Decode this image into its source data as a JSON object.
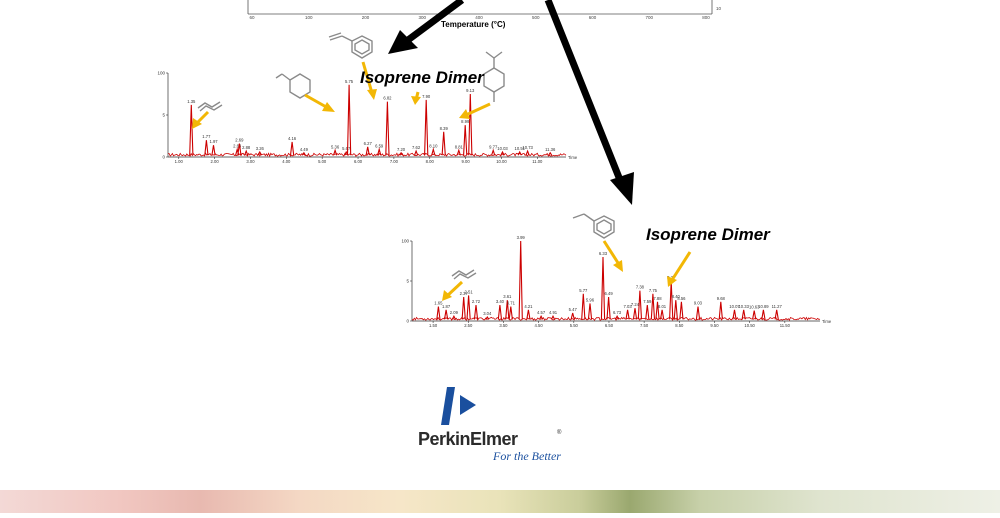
{
  "top_axis": {
    "xlabel": "Temperature (°C)",
    "ticks": [
      "60",
      "100",
      "200",
      "300",
      "400",
      "500",
      "600",
      "700",
      "800"
    ],
    "right_tick": "10"
  },
  "annotations": {
    "isoprene_dimer_1": "Isoprene Dimer",
    "isoprene_dimer_2": "Isoprene Dimer"
  },
  "colors": {
    "trace": "#cc0000",
    "callout_arrow": "#f2b705",
    "flow_arrow": "#000000",
    "brand_blue": "#1a4f9e"
  },
  "logo": {
    "name": "PerkinElmer",
    "registered": "®",
    "tagline": "For the Better"
  },
  "chart_data": [
    {
      "type": "line",
      "ylim": [
        0,
        100
      ],
      "y_ticks": [
        "100",
        "5",
        "0"
      ],
      "x_ticks": [
        "1.00",
        "2.00",
        "3.00",
        "4.00",
        "5.00",
        "6.00",
        "7.00",
        "8.00",
        "9.00",
        "10.00",
        "11.00"
      ],
      "xlim": [
        0.7,
        11.8
      ],
      "x_unit": "Time",
      "peaks": [
        {
          "x": 1.35,
          "y": 62,
          "label": "1.35"
        },
        {
          "x": 1.77,
          "y": 20,
          "label": "1.77"
        },
        {
          "x": 1.97,
          "y": 14,
          "label": "1.97"
        },
        {
          "x": 2.63,
          "y": 9,
          "label": "2.63"
        },
        {
          "x": 2.69,
          "y": 16,
          "label": "2.69"
        },
        {
          "x": 2.88,
          "y": 7,
          "label": "2.88"
        },
        {
          "x": 3.26,
          "y": 6,
          "label": "3.26"
        },
        {
          "x": 4.16,
          "y": 18,
          "label": "4.16"
        },
        {
          "x": 4.49,
          "y": 5,
          "label": "4.49"
        },
        {
          "x": 5.36,
          "y": 8,
          "label": "5.36"
        },
        {
          "x": 5.67,
          "y": 6,
          "label": "5.67"
        },
        {
          "x": 5.75,
          "y": 86,
          "label": "5.75"
        },
        {
          "x": 6.27,
          "y": 12,
          "label": "6.27"
        },
        {
          "x": 6.59,
          "y": 9,
          "label": "6.59"
        },
        {
          "x": 6.82,
          "y": 66,
          "label": "6.82"
        },
        {
          "x": 7.2,
          "y": 5,
          "label": "7.20"
        },
        {
          "x": 7.62,
          "y": 7,
          "label": "7.62"
        },
        {
          "x": 7.9,
          "y": 68,
          "label": "7.90"
        },
        {
          "x": 8.1,
          "y": 9,
          "label": "8.10"
        },
        {
          "x": 8.39,
          "y": 30,
          "label": "8.39"
        },
        {
          "x": 8.81,
          "y": 8,
          "label": "8.81"
        },
        {
          "x": 8.99,
          "y": 38,
          "label": "8.99"
        },
        {
          "x": 9.13,
          "y": 75,
          "label": "9.13"
        },
        {
          "x": 9.77,
          "y": 8,
          "label": "9.77"
        },
        {
          "x": 10.03,
          "y": 6,
          "label": "10.03"
        },
        {
          "x": 10.51,
          "y": 6,
          "label": "10.51"
        },
        {
          "x": 10.73,
          "y": 7,
          "label": "10.73"
        },
        {
          "x": 11.36,
          "y": 5,
          "label": "11.36"
        }
      ]
    },
    {
      "type": "line",
      "ylim": [
        0,
        100
      ],
      "y_ticks": [
        "100",
        "5",
        "0"
      ],
      "x_ticks": [
        "1.50",
        "2.50",
        "3.50",
        "4.50",
        "5.50",
        "6.50",
        "7.50",
        "8.50",
        "9.50",
        "10.50",
        "11.50"
      ],
      "xlim": [
        0.9,
        12.5
      ],
      "x_unit": "Time",
      "peaks": [
        {
          "x": 1.65,
          "y": 18,
          "label": "1.65"
        },
        {
          "x": 1.87,
          "y": 14,
          "label": "1.87"
        },
        {
          "x": 2.09,
          "y": 6,
          "label": "2.09"
        },
        {
          "x": 2.37,
          "y": 30,
          "label": "2.37"
        },
        {
          "x": 2.51,
          "y": 32,
          "label": "2.51"
        },
        {
          "x": 2.72,
          "y": 20,
          "label": "2.72"
        },
        {
          "x": 3.04,
          "y": 5,
          "label": "3.04"
        },
        {
          "x": 3.4,
          "y": 20,
          "label": "3.40"
        },
        {
          "x": 3.61,
          "y": 26,
          "label": "3.61"
        },
        {
          "x": 3.71,
          "y": 18,
          "label": "3.71"
        },
        {
          "x": 3.99,
          "y": 100,
          "label": "3.99"
        },
        {
          "x": 4.21,
          "y": 14,
          "label": "4.21"
        },
        {
          "x": 4.57,
          "y": 6,
          "label": "4.57"
        },
        {
          "x": 4.91,
          "y": 6,
          "label": "4.91"
        },
        {
          "x": 5.47,
          "y": 10,
          "label": "5.47"
        },
        {
          "x": 5.77,
          "y": 34,
          "label": "5.77"
        },
        {
          "x": 5.96,
          "y": 22,
          "label": "5.96"
        },
        {
          "x": 6.33,
          "y": 80,
          "label": "6.33"
        },
        {
          "x": 6.49,
          "y": 30,
          "label": "6.49"
        },
        {
          "x": 6.73,
          "y": 6,
          "label": "6.73"
        },
        {
          "x": 7.03,
          "y": 14,
          "label": "7.03"
        },
        {
          "x": 7.24,
          "y": 16,
          "label": "7.24"
        },
        {
          "x": 7.38,
          "y": 38,
          "label": "7.38"
        },
        {
          "x": 7.59,
          "y": 20,
          "label": "7.59"
        },
        {
          "x": 7.75,
          "y": 34,
          "label": "7.75"
        },
        {
          "x": 7.88,
          "y": 24,
          "label": "7.88"
        },
        {
          "x": 8.01,
          "y": 14,
          "label": "8.01"
        },
        {
          "x": 8.27,
          "y": 50,
          "label": "8.27"
        },
        {
          "x": 8.4,
          "y": 26,
          "label": "8.40"
        },
        {
          "x": 8.56,
          "y": 24,
          "label": "8.56"
        },
        {
          "x": 9.03,
          "y": 18,
          "label": "9.03"
        },
        {
          "x": 9.68,
          "y": 24,
          "label": "9.68"
        },
        {
          "x": 10.07,
          "y": 14,
          "label": "10.07"
        },
        {
          "x": 10.33,
          "y": 14,
          "label": "10.33"
        },
        {
          "x": 10.63,
          "y": 13,
          "label": "10.63"
        },
        {
          "x": 10.89,
          "y": 14,
          "label": "10.89"
        },
        {
          "x": 11.27,
          "y": 14,
          "label": "11.27"
        }
      ]
    }
  ]
}
